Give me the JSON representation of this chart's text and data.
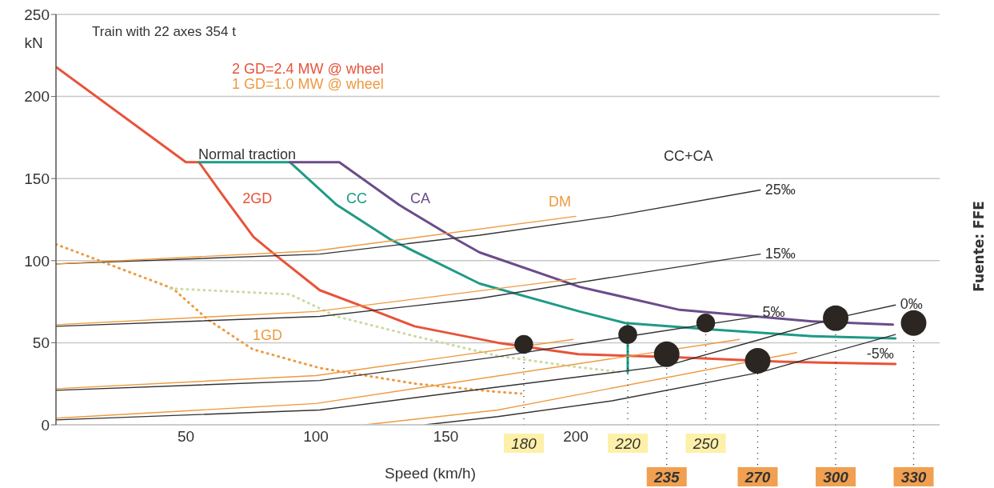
{
  "chart_data": {
    "type": "line",
    "xlabel": "Speed (km/h)",
    "ylabel": "kN",
    "xlim": [
      0,
      340
    ],
    "xticks": [
      50,
      100,
      150,
      200
    ],
    "ylim": [
      0,
      250
    ],
    "yticks": [
      0,
      50,
      100,
      150,
      200,
      250
    ],
    "grid": "y",
    "line_style": "solid",
    "annotations": [
      "Train with 22 axes 354 t",
      "2 GD=2.4 MW @ wheel",
      "1 GD=1.0 MW @ wheel",
      "Normal traction",
      "CC+CA",
      "Fuente: FFE"
    ],
    "series": [
      {
        "name": "2GD",
        "color": "#e8533a",
        "x": [
          0,
          50,
          55,
          65,
          76,
          84,
          101.5,
          120,
          138,
          170,
          201,
          240,
          278,
          323
        ],
        "values": [
          218,
          160,
          160,
          138,
          114.5,
          104,
          82,
          71,
          60,
          50,
          43,
          41,
          38.5,
          37
        ]
      },
      {
        "name": "CC",
        "color": "#1e9a85",
        "x": [
          55,
          90,
          108,
          129,
          163,
          201.5,
          219,
          253,
          291,
          323
        ],
        "values": [
          160,
          160,
          134,
          112.6,
          86,
          69,
          62,
          58,
          54,
          52.6
        ]
      },
      {
        "name": "CA",
        "color": "#6b4c8a",
        "x": [
          90,
          109,
          132,
          154.5,
          163,
          201.5,
          240,
          291,
          322
        ],
        "values": [
          160,
          160,
          134,
          112.6,
          105,
          84,
          70,
          63,
          61
        ]
      },
      {
        "name": "1GD",
        "color": "#ee9a40",
        "line_style": "dotted",
        "x": [
          0,
          45,
          58.5,
          75.7,
          101.5,
          138.5,
          170,
          179
        ],
        "values": [
          110,
          83,
          64,
          46,
          34.6,
          25,
          20,
          19
        ]
      },
      {
        "color": "#c8dca0",
        "line_style": "dotted",
        "x": [
          44,
          90,
          108,
          138,
          170,
          201.5,
          218
        ],
        "values": [
          83,
          79.5,
          66,
          54,
          42,
          35,
          32
        ]
      },
      {
        "color": "#1e9a85",
        "x": [
          220,
          220
        ],
        "values": [
          32,
          62
        ]
      },
      {
        "name": "25‰",
        "color": "#333333",
        "x": [
          0,
          101.5,
          163,
          214,
          271
        ],
        "values": [
          98,
          104,
          115.5,
          127,
          143
        ]
      },
      {
        "name": "15‰",
        "color": "#333333",
        "x": [
          0,
          101.5,
          163,
          214.5,
          271
        ],
        "values": [
          60,
          66,
          77,
          90,
          104
        ]
      },
      {
        "name": "5‰",
        "color": "#333333",
        "x": [
          0,
          101.5,
          170,
          219,
          270
        ],
        "values": [
          21,
          27,
          41.5,
          53.6,
          66
        ]
      },
      {
        "name": "0‰",
        "color": "#333333",
        "x": [
          0,
          101.5,
          170,
          235,
          271,
          300,
          323
        ],
        "values": [
          3,
          9,
          23,
          36,
          52,
          65,
          73
        ]
      },
      {
        "name": "-5‰",
        "color": "#333333",
        "x": [
          142,
          170,
          214,
          271,
          323
        ],
        "values": [
          0,
          5,
          14.6,
          32,
          55
        ]
      },
      {
        "name": "DM",
        "color": "#ee9a40",
        "x": [
          0,
          100,
          200
        ],
        "values": [
          98,
          106,
          127
        ]
      },
      {
        "color": "#ee9a40",
        "x": [
          0,
          100,
          200
        ],
        "values": [
          61,
          69,
          89
        ]
      },
      {
        "color": "#ee9a40",
        "x": [
          0,
          100,
          199
        ],
        "values": [
          22,
          30,
          52
        ]
      },
      {
        "color": "#ee9a40",
        "x": [
          0,
          100,
          263
        ],
        "values": [
          4,
          13,
          52
        ]
      },
      {
        "color": "#ee9a40",
        "x": [
          119,
          170,
          285
        ],
        "values": [
          0,
          9,
          44
        ]
      },
      {
        "type": "bubble",
        "marker": "circle",
        "color": "#2b2622",
        "x": [
          180,
          220,
          235,
          250,
          270,
          300,
          330
        ],
        "values": [
          49,
          55,
          43,
          62,
          39,
          65,
          62
        ],
        "sizes": [
          0.54,
          0.54,
          1,
          0.54,
          1,
          1,
          1
        ]
      }
    ],
    "ref_lines": [
      {
        "axis": "x",
        "value": 180,
        "label": "180",
        "color": "#222222",
        "line_style": "dotted"
      },
      {
        "axis": "x",
        "value": 220,
        "label": "220",
        "color": "#222222",
        "line_style": "dotted"
      },
      {
        "axis": "x",
        "value": 235,
        "label": "235",
        "color": "#222222",
        "line_style": "dotted"
      },
      {
        "axis": "x",
        "value": 250,
        "label": "250",
        "color": "#222222",
        "line_style": "dotted"
      },
      {
        "axis": "x",
        "value": 270,
        "label": "270",
        "color": "#222222",
        "line_style": "dotted"
      },
      {
        "axis": "x",
        "value": 300,
        "label": "300",
        "color": "#222222",
        "line_style": "dotted"
      },
      {
        "axis": "x",
        "value": 330,
        "label": "330",
        "color": "#222222",
        "line_style": "dotted"
      }
    ]
  }
}
